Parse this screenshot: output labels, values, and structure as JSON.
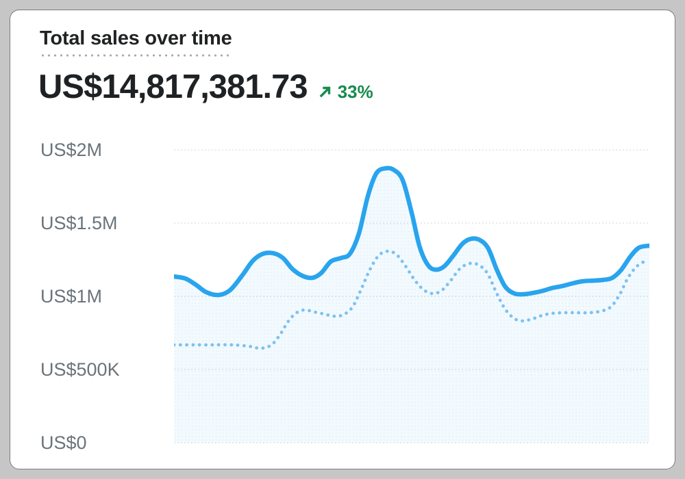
{
  "card": {
    "title": "Total sales over time",
    "total_value": "US$14,817,381.73",
    "change": {
      "direction": "up",
      "percent": "33%",
      "arrow_icon": "trend-up-arrow"
    }
  },
  "colors": {
    "positive_green": "#168c4d",
    "current_line_blue": "#29a4ee",
    "previous_line_blue": "#7ec1f1",
    "area_fill_blue": "rgba(41,164,238,0.055)",
    "area_dot_blue": "rgba(41,164,238,0.10)",
    "gridline_gray": "#e4e4e4",
    "text_dark": "#202223",
    "axis_label_gray": "#6b737a",
    "card_background": "#ffffff",
    "page_background": "#c6c6c6"
  },
  "chart_data": {
    "type": "line",
    "title": "Total sales over time",
    "xlabel": "",
    "ylabel": "",
    "grid": true,
    "legend": "none",
    "y_ticks": [
      "US$2M",
      "US$1.5M",
      "US$1M",
      "US$500K",
      "US$0"
    ],
    "y_tick_values_usd_millions": [
      2.0,
      1.5,
      1.0,
      0.5,
      0.0
    ],
    "ylim_usd_millions": [
      0,
      2.2
    ],
    "x_unit": "percent_of_range",
    "value_unit": "USD_millions",
    "series": [
      {
        "name": "current-period-sales",
        "style": "solid",
        "points": [
          [
            0,
            1.135
          ],
          [
            2.4,
            1.121
          ],
          [
            4.6,
            1.079
          ],
          [
            6.8,
            1.028
          ],
          [
            9.4,
            1.009
          ],
          [
            11.8,
            1.042
          ],
          [
            14.3,
            1.14
          ],
          [
            16.6,
            1.243
          ],
          [
            18.7,
            1.29
          ],
          [
            20.9,
            1.294
          ],
          [
            22.9,
            1.262
          ],
          [
            24.9,
            1.187
          ],
          [
            27.0,
            1.14
          ],
          [
            29.1,
            1.126
          ],
          [
            31.0,
            1.16
          ],
          [
            33.0,
            1.238
          ],
          [
            35.2,
            1.262
          ],
          [
            37.0,
            1.29
          ],
          [
            38.9,
            1.43
          ],
          [
            40.8,
            1.687
          ],
          [
            42.6,
            1.841
          ],
          [
            44.5,
            1.874
          ],
          [
            46.2,
            1.864
          ],
          [
            48.1,
            1.794
          ],
          [
            50.0,
            1.57
          ],
          [
            51.7,
            1.336
          ],
          [
            53.5,
            1.21
          ],
          [
            55.2,
            1.182
          ],
          [
            56.9,
            1.206
          ],
          [
            58.8,
            1.28
          ],
          [
            60.7,
            1.36
          ],
          [
            62.5,
            1.393
          ],
          [
            64.4,
            1.383
          ],
          [
            66.1,
            1.327
          ],
          [
            67.9,
            1.182
          ],
          [
            69.7,
            1.065
          ],
          [
            71.6,
            1.019
          ],
          [
            73.5,
            1.014
          ],
          [
            75.5,
            1.023
          ],
          [
            77.5,
            1.037
          ],
          [
            79.5,
            1.056
          ],
          [
            81.7,
            1.07
          ],
          [
            83.9,
            1.089
          ],
          [
            86.0,
            1.103
          ],
          [
            88.2,
            1.107
          ],
          [
            90.3,
            1.112
          ],
          [
            92.2,
            1.126
          ],
          [
            94.1,
            1.182
          ],
          [
            96.0,
            1.271
          ],
          [
            97.8,
            1.332
          ],
          [
            100,
            1.346
          ]
        ]
      },
      {
        "name": "previous-period-sales",
        "style": "dotted",
        "points": [
          [
            0,
            0.668
          ],
          [
            3.9,
            0.668
          ],
          [
            8.2,
            0.668
          ],
          [
            12.5,
            0.668
          ],
          [
            15.7,
            0.659
          ],
          [
            18.3,
            0.645
          ],
          [
            20.5,
            0.668
          ],
          [
            22.3,
            0.738
          ],
          [
            24.1,
            0.832
          ],
          [
            25.8,
            0.888
          ],
          [
            27.5,
            0.907
          ],
          [
            29.5,
            0.893
          ],
          [
            31.6,
            0.879
          ],
          [
            33.6,
            0.864
          ],
          [
            35.6,
            0.874
          ],
          [
            37.5,
            0.925
          ],
          [
            39.3,
            1.042
          ],
          [
            41.2,
            1.182
          ],
          [
            43.1,
            1.28
          ],
          [
            45.0,
            1.308
          ],
          [
            46.8,
            1.285
          ],
          [
            48.7,
            1.206
          ],
          [
            50.6,
            1.112
          ],
          [
            52.4,
            1.047
          ],
          [
            54.3,
            1.019
          ],
          [
            56.2,
            1.037
          ],
          [
            58.1,
            1.103
          ],
          [
            60.1,
            1.187
          ],
          [
            62.1,
            1.224
          ],
          [
            64.0,
            1.215
          ],
          [
            65.9,
            1.159
          ],
          [
            67.7,
            1.033
          ],
          [
            69.6,
            0.916
          ],
          [
            71.5,
            0.85
          ],
          [
            73.3,
            0.832
          ],
          [
            75.4,
            0.846
          ],
          [
            77.4,
            0.869
          ],
          [
            79.5,
            0.883
          ],
          [
            82.0,
            0.888
          ],
          [
            84.6,
            0.888
          ],
          [
            87.2,
            0.888
          ],
          [
            89.6,
            0.897
          ],
          [
            91.8,
            0.925
          ],
          [
            93.7,
            1.009
          ],
          [
            95.5,
            1.126
          ],
          [
            97.4,
            1.206
          ],
          [
            99.3,
            1.243
          ]
        ]
      }
    ]
  }
}
